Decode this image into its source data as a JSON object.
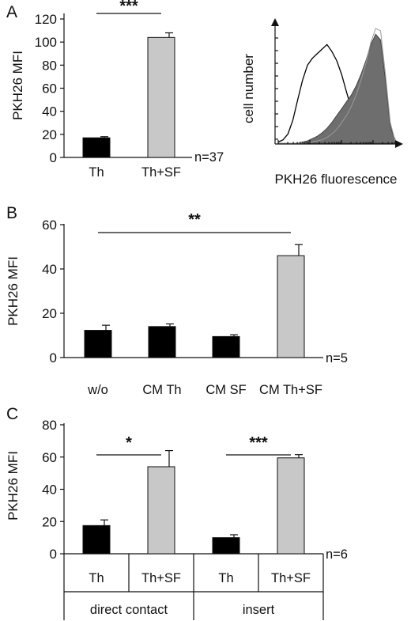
{
  "chart_data": [
    {
      "panel": "A",
      "type": "bar",
      "ylabel": "PKH26 MFI",
      "ylim": [
        0,
        120
      ],
      "yticks": [
        0,
        20,
        40,
        60,
        80,
        100,
        120
      ],
      "categories": [
        "Th",
        "Th+SF"
      ],
      "values": [
        17,
        104
      ],
      "errors": [
        1,
        4
      ],
      "colors": [
        "#000000",
        "#c8c8c8"
      ],
      "n_label": "n=37",
      "significance": [
        {
          "from": 0,
          "to": 1,
          "label": "***"
        }
      ],
      "grid": false
    },
    {
      "panel": "A",
      "type": "area",
      "ylabel": "cell number",
      "xlabel": "PKH26 fluorescence",
      "series": [
        {
          "style": "outline",
          "color": "#000000",
          "values": [
            0.01,
            0.03,
            0.08,
            0.2,
            0.38,
            0.55,
            0.68,
            0.74,
            0.78,
            0.82,
            0.86,
            0.8,
            0.72,
            0.6,
            0.45,
            0.3,
            0.22,
            0.18,
            0.2,
            0.26,
            0.3,
            0.33,
            0.28,
            0.12,
            0.03
          ]
        },
        {
          "style": "filled",
          "color": "#6e6e6e",
          "values": [
            0,
            0,
            0,
            0,
            0,
            0.01,
            0.02,
            0.04,
            0.06,
            0.09,
            0.13,
            0.18,
            0.24,
            0.3,
            0.36,
            0.42,
            0.5,
            0.6,
            0.72,
            0.86,
            0.95,
            0.9,
            0.55,
            0.15,
            0.02
          ]
        },
        {
          "style": "outline-light",
          "color": "#9a9a9a",
          "values": [
            0,
            0,
            0,
            0,
            0,
            0,
            0,
            0.01,
            0.02,
            0.03,
            0.05,
            0.08,
            0.12,
            0.18,
            0.24,
            0.32,
            0.42,
            0.55,
            0.7,
            0.88,
            1.0,
            0.98,
            0.6,
            0.18,
            0.02
          ]
        }
      ],
      "x_log": true
    },
    {
      "panel": "B",
      "type": "bar",
      "ylabel": "PKH26 MFI",
      "ylim": [
        0,
        60
      ],
      "yticks": [
        0,
        20,
        40,
        60
      ],
      "categories": [
        "w/o",
        "CM Th",
        "CM SF",
        "CM Th+SF"
      ],
      "values": [
        12.3,
        14,
        9.5,
        46
      ],
      "errors": [
        2.3,
        1.2,
        0.8,
        5
      ],
      "colors": [
        "#000000",
        "#000000",
        "#000000",
        "#c8c8c8"
      ],
      "n_label": "n=5",
      "significance": [
        {
          "from": 0,
          "to": 3,
          "label": "**"
        }
      ],
      "grid": false
    },
    {
      "panel": "C",
      "type": "bar",
      "ylabel": "PKH26 MFI",
      "ylim": [
        0,
        80
      ],
      "yticks": [
        0,
        20,
        40,
        60,
        80
      ],
      "categories": [
        "Th",
        "Th+SF",
        "Th",
        "Th+SF"
      ],
      "groups": [
        {
          "label": "direct contact",
          "indices": [
            0,
            1
          ]
        },
        {
          "label": "insert",
          "indices": [
            2,
            3
          ]
        }
      ],
      "values": [
        17.5,
        54,
        10,
        59.5
      ],
      "errors": [
        3.5,
        10,
        1.8,
        2
      ],
      "colors": [
        "#000000",
        "#c8c8c8",
        "#000000",
        "#c8c8c8"
      ],
      "n_label": "n=6",
      "significance": [
        {
          "from": 0,
          "to": 1,
          "label": "*"
        },
        {
          "from": 2,
          "to": 3,
          "label": "***"
        }
      ],
      "grid": false
    }
  ]
}
